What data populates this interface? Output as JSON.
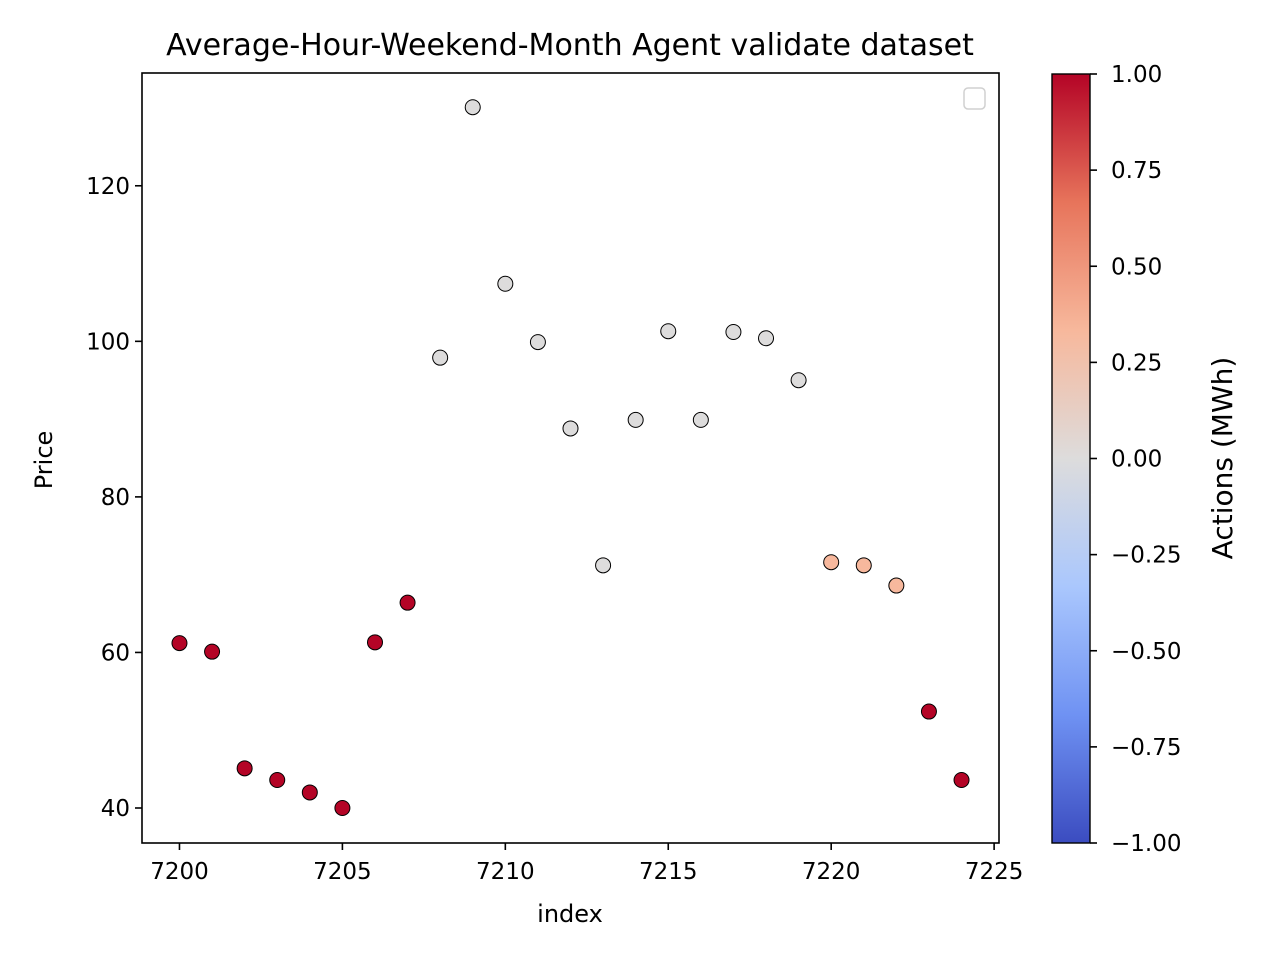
{
  "chart_data": {
    "type": "scatter",
    "title": "Average-Hour-Weekend-Month Agent validate dataset",
    "xlabel": "index",
    "ylabel": "Price",
    "xlim": [
      7198.85,
      7225.15
    ],
    "ylim": [
      35.5,
      134.5
    ],
    "xticks": [
      7200,
      7205,
      7210,
      7215,
      7220,
      7225
    ],
    "yticks": [
      40,
      60,
      80,
      100,
      120
    ],
    "legend": {
      "visible": true,
      "placement": "top-right",
      "entries": []
    },
    "grid": false,
    "points": [
      {
        "x": 7200,
        "y": 61.2,
        "action": 1.0
      },
      {
        "x": 7201,
        "y": 60.1,
        "action": 1.0
      },
      {
        "x": 7202,
        "y": 45.1,
        "action": 1.0
      },
      {
        "x": 7203,
        "y": 43.6,
        "action": 1.0
      },
      {
        "x": 7204,
        "y": 42.0,
        "action": 1.0
      },
      {
        "x": 7205,
        "y": 40.0,
        "action": 1.0
      },
      {
        "x": 7206,
        "y": 61.3,
        "action": 1.0
      },
      {
        "x": 7207,
        "y": 66.4,
        "action": 1.0
      },
      {
        "x": 7208,
        "y": 97.9,
        "action": 0.0
      },
      {
        "x": 7209,
        "y": 130.1,
        "action": 0.0
      },
      {
        "x": 7210,
        "y": 107.4,
        "action": 0.0
      },
      {
        "x": 7211,
        "y": 99.9,
        "action": 0.0
      },
      {
        "x": 7212,
        "y": 88.8,
        "action": 0.0
      },
      {
        "x": 7213,
        "y": 71.2,
        "action": 0.0
      },
      {
        "x": 7214,
        "y": 89.9,
        "action": 0.0
      },
      {
        "x": 7215,
        "y": 101.3,
        "action": 0.0
      },
      {
        "x": 7216,
        "y": 89.9,
        "action": 0.0
      },
      {
        "x": 7217,
        "y": 101.2,
        "action": 0.0
      },
      {
        "x": 7218,
        "y": 100.4,
        "action": 0.0
      },
      {
        "x": 7219,
        "y": 95.0,
        "action": 0.0
      },
      {
        "x": 7220,
        "y": 71.6,
        "action": 0.33
      },
      {
        "x": 7221,
        "y": 71.2,
        "action": 0.33
      },
      {
        "x": 7222,
        "y": 68.6,
        "action": 0.33
      },
      {
        "x": 7223,
        "y": 52.4,
        "action": 1.0
      },
      {
        "x": 7224,
        "y": 43.6,
        "action": 1.0
      }
    ],
    "colorbar": {
      "label": "Actions (MWh)",
      "colormap": "coolwarm",
      "range": [
        -1.0,
        1.0
      ],
      "ticks": [
        1.0,
        0.75,
        0.5,
        0.25,
        0.0,
        -0.25,
        -0.5,
        -0.75,
        -1.0
      ],
      "tick_labels": [
        "1.00",
        "0.75",
        "0.50",
        "0.25",
        "0.00",
        "−0.25",
        "−0.50",
        "−0.75",
        "−1.00"
      ],
      "colors": [
        "#3b4cc0",
        "#6f92f3",
        "#aac7fd",
        "#dddcdc",
        "#f7b89c",
        "#e7745b",
        "#b40426"
      ]
    }
  }
}
